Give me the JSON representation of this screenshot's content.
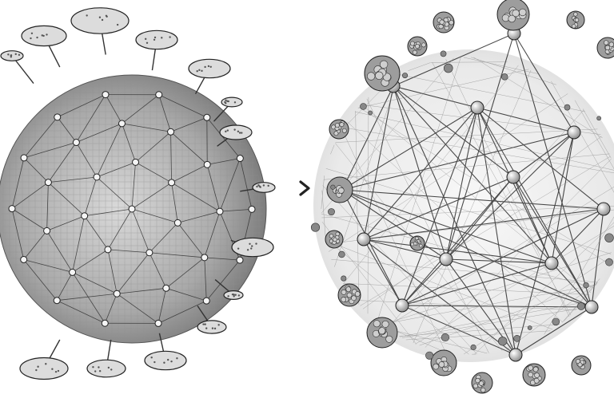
{
  "image": {
    "kind": "illustration",
    "style": "pen-and-ink grayscale",
    "panels": [
      {
        "id": "left",
        "icon": "network-sphere-fungal"
      },
      {
        "id": "right",
        "icon": "network-sphere-dense"
      }
    ],
    "separator_icon": "chevron-right-icon",
    "colors": {
      "background": "#ffffff",
      "ink": "#222222",
      "shade": "#9a9a9a",
      "node": "#f4f4f4"
    }
  }
}
